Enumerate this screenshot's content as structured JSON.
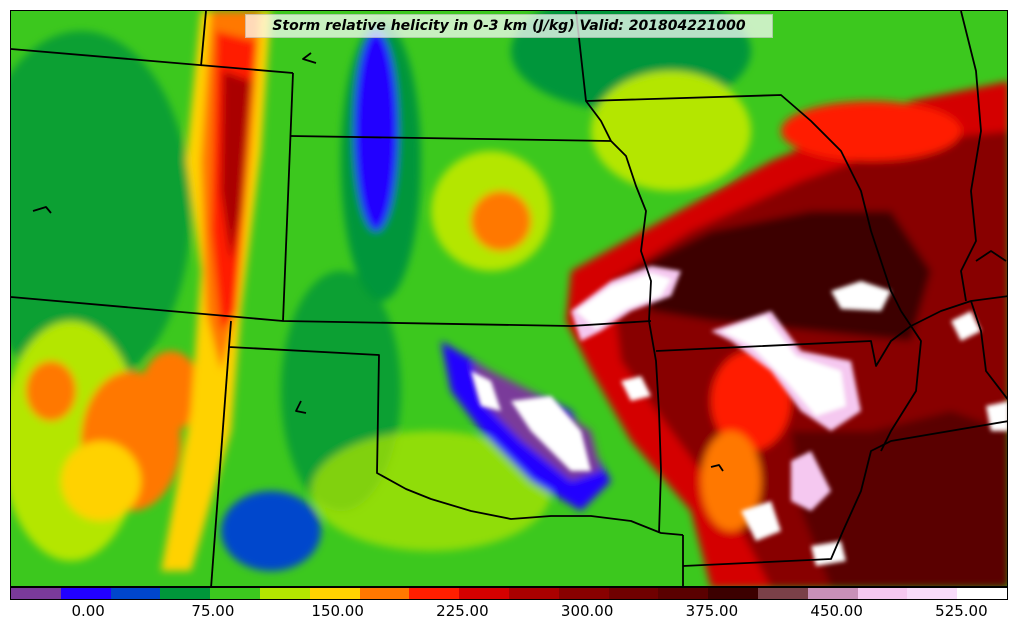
{
  "title": "Storm relative helicity in 0-3 km (J/kg) Valid: 201804221000",
  "colorbar": {
    "colors": [
      "#7a3a9a",
      "#2200ff",
      "#0046cc",
      "#00963a",
      "#3cc81e",
      "#b4e600",
      "#ffd200",
      "#ff7800",
      "#ff1e00",
      "#d40000",
      "#aa0000",
      "#880000",
      "#700000",
      "#5a0000",
      "#3c0000",
      "#7a4048",
      "#c890b8",
      "#f5c8f0",
      "#f8dcfa",
      "#ffffff"
    ],
    "labels": [
      {
        "text": "0.00",
        "index": 2
      },
      {
        "text": "75.00",
        "index": 5
      },
      {
        "text": "150.00",
        "index": 8
      },
      {
        "text": "225.00",
        "index": 11
      },
      {
        "text": "300.00",
        "index": 14
      },
      {
        "text": "375.00",
        "index": 17
      },
      {
        "text": "450.00",
        "index": 20
      },
      {
        "text": "525.00",
        "index": 23
      }
    ]
  }
}
